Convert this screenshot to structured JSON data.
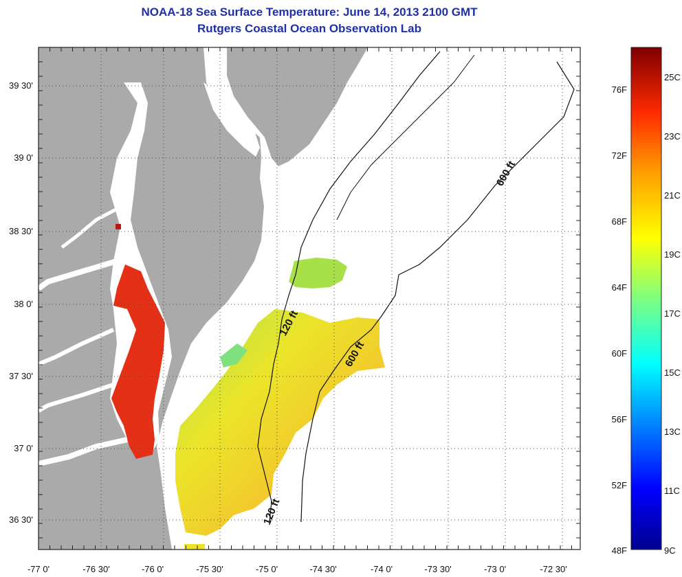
{
  "title": {
    "line1": "NOAA-18 Sea Surface Temperature:  June 14, 2013 2100 GMT",
    "line2": "Rutgers Coastal Ocean Observation Lab"
  },
  "axes": {
    "lon_ticks": [
      "-77 0'",
      "-76 30'",
      "-76 0'",
      "-75 30'",
      "-75 0'",
      "-74 30'",
      "-74 0'",
      "-73 30'",
      "-73 0'",
      "-72 30'"
    ],
    "lat_ticks": [
      "39 30'",
      "39 0'",
      "38 30'",
      "38 0'",
      "37 30'",
      "37 0'",
      "36 30'"
    ]
  },
  "contours": {
    "shelf_label": "120 ft",
    "slope_label": "600 ft"
  },
  "colorbar": {
    "fahrenheit_labels": [
      "76F",
      "72F",
      "68F",
      "64F",
      "60F",
      "56F",
      "52F",
      "48F"
    ],
    "celsius_labels": [
      "25C",
      "23C",
      "21C",
      "19C",
      "17C",
      "15C",
      "13C",
      "11C",
      "9C"
    ],
    "range_c": [
      9,
      26
    ]
  },
  "colors": {
    "land": "#aaaaaa",
    "title": "#1f2fa6",
    "warm_bay": "#e33016",
    "shelf_yellow": "#e6e627",
    "shelf_orange": "#f2a52a"
  }
}
